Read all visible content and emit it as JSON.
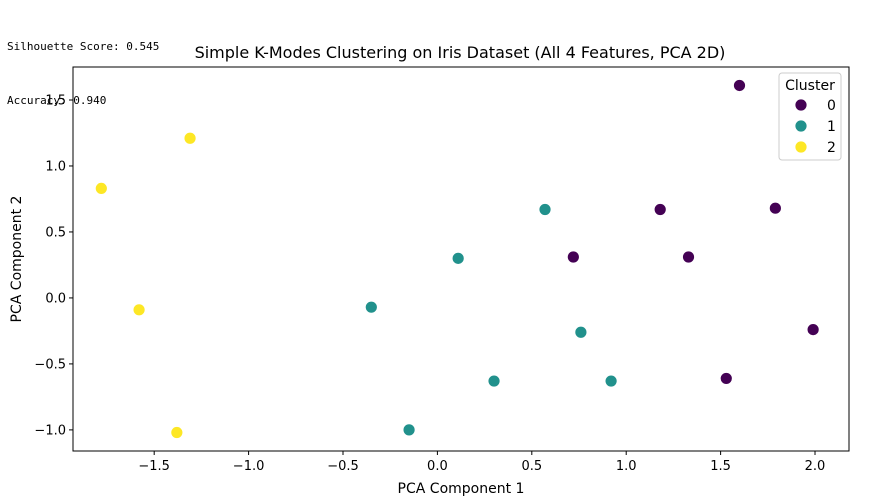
{
  "console": {
    "lines": [
      "Silhouette Score: 0.545",
      "Accuracy: 0.940"
    ]
  },
  "chart_data": {
    "type": "scatter",
    "title": "Simple K-Modes Clustering on Iris Dataset (All 4 Features, PCA 2D)",
    "xlabel": "PCA Component 1",
    "ylabel": "PCA Component 2",
    "xlim": [
      -1.93,
      2.18
    ],
    "ylim": [
      -1.16,
      1.75
    ],
    "xticks": [
      -1.5,
      -1.0,
      -0.5,
      0.0,
      0.5,
      1.0,
      1.5,
      2.0
    ],
    "xtick_labels": [
      "−1.5",
      "−1.0",
      "−0.5",
      "0.0",
      "0.5",
      "1.0",
      "1.5",
      "2.0"
    ],
    "yticks": [
      -1.0,
      -0.5,
      0.0,
      0.5,
      1.0,
      1.5
    ],
    "ytick_labels": [
      "−1.0",
      "−0.5",
      "0.0",
      "0.5",
      "1.0",
      "1.5"
    ],
    "grid": false,
    "legend": {
      "title": "Cluster",
      "placement": "top-right"
    },
    "series": [
      {
        "name": "0",
        "color": "#440154",
        "points": [
          [
            1.6,
            1.61
          ],
          [
            1.18,
            0.67
          ],
          [
            1.79,
            0.68
          ],
          [
            0.72,
            0.31
          ],
          [
            1.33,
            0.31
          ],
          [
            1.99,
            -0.24
          ],
          [
            1.53,
            -0.61
          ]
        ]
      },
      {
        "name": "1",
        "color": "#21918c",
        "points": [
          [
            0.57,
            0.67
          ],
          [
            0.11,
            0.3
          ],
          [
            -0.35,
            -0.07
          ],
          [
            0.76,
            -0.26
          ],
          [
            0.3,
            -0.63
          ],
          [
            0.92,
            -0.63
          ],
          [
            -0.15,
            -1.0
          ]
        ]
      },
      {
        "name": "2",
        "color": "#fde725",
        "points": [
          [
            -1.31,
            1.21
          ],
          [
            -1.78,
            0.83
          ],
          [
            -1.58,
            -0.09
          ],
          [
            -1.38,
            -1.02
          ]
        ]
      }
    ]
  }
}
